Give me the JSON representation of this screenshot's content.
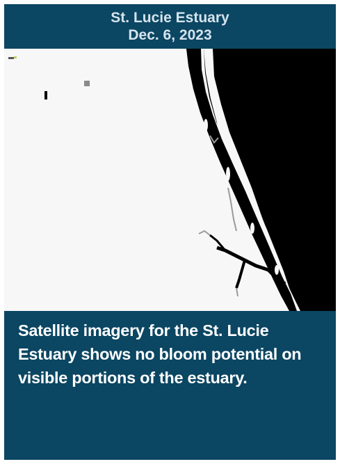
{
  "header": {
    "title_line1": "St. Lucie Estuary",
    "title_line2": "Dec. 6, 2023"
  },
  "map": {
    "land_color": "#f7f7f7",
    "water_color": "#000000",
    "no_data_color": "#9a9a9a"
  },
  "caption": {
    "text": "Satellite imagery for the St. Lucie Estuary shows no bloom potential on visible portions of the estuary."
  },
  "colors": {
    "panel": "#0b4662",
    "header_text": "#d5e4ee",
    "caption_text": "#ffffff"
  }
}
